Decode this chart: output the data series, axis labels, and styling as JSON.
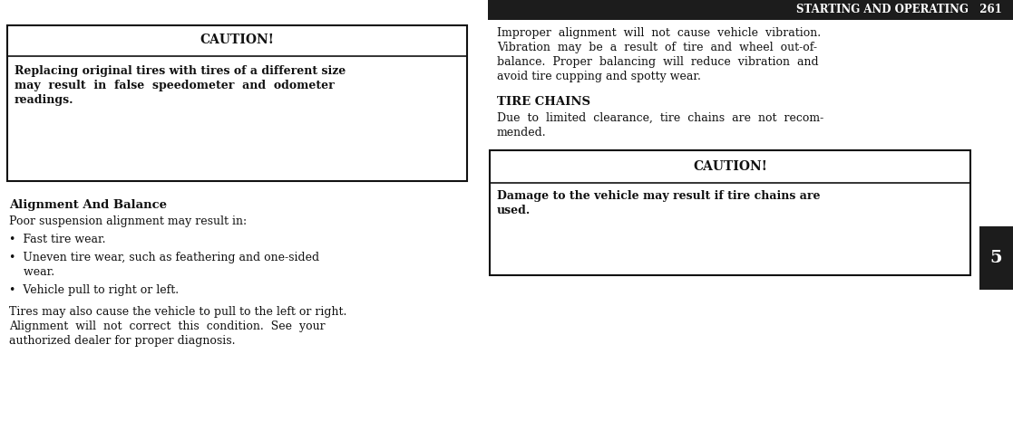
{
  "bg_color": "#ffffff",
  "header_bg": "#1c1c1c",
  "header_text": "STARTING AND OPERATING   261",
  "header_text_color": "#ffffff",
  "header_fontsize": 7.8,
  "page_number_bg": "#1c1c1c",
  "page_number_text": "5",
  "page_number_color": "#ffffff",
  "caution1_title": "CAUTION!",
  "caution1_body_line1": "Replacing original tires with tires of a different size",
  "caution1_body_line2": "may  result  in  false  speedometer  and  odometer",
  "caution1_body_line3": "readings.",
  "caution2_title": "CAUTION!",
  "caution2_body_line1": "Damage to the vehicle may result if tire chains are",
  "caution2_body_line2": "used.",
  "section1_title": "Alignment And Balance",
  "section1_body": "Poor suspension alignment may result in:",
  "bullet1": "•  Fast tire wear.",
  "bullet2a": "•  Uneven tire wear, such as feathering and one-sided",
  "bullet2b": "    wear.",
  "bullet3": "•  Vehicle pull to right or left.",
  "para1_line1": "Tires may also cause the vehicle to pull to the left or right.",
  "para1_line2": "Alignment  will  not  correct  this  condition.  See  your",
  "para1_line3": "authorized dealer for proper diagnosis.",
  "right_para1_line1": "Improper  alignment  will  not  cause  vehicle  vibration.",
  "right_para1_line2": "Vibration  may  be  a  result  of  tire  and  wheel  out-of-",
  "right_para1_line3": "balance.  Proper  balancing  will  reduce  vibration  and",
  "right_para1_line4": "avoid tire cupping and spotty wear.",
  "section2_title": "TIRE CHAINS",
  "section2_body_line1": "Due  to  limited  clearance,  tire  chains  are  not  recom-",
  "section2_body_line2": "mended.",
  "font_family": "DejaVu Serif",
  "body_fontsize": 9.0,
  "section_title_fontsize": 9.5,
  "caution_title_fontsize": 10.0,
  "header_fontsize_val": 8.5,
  "pagenum_fontsize": 14
}
